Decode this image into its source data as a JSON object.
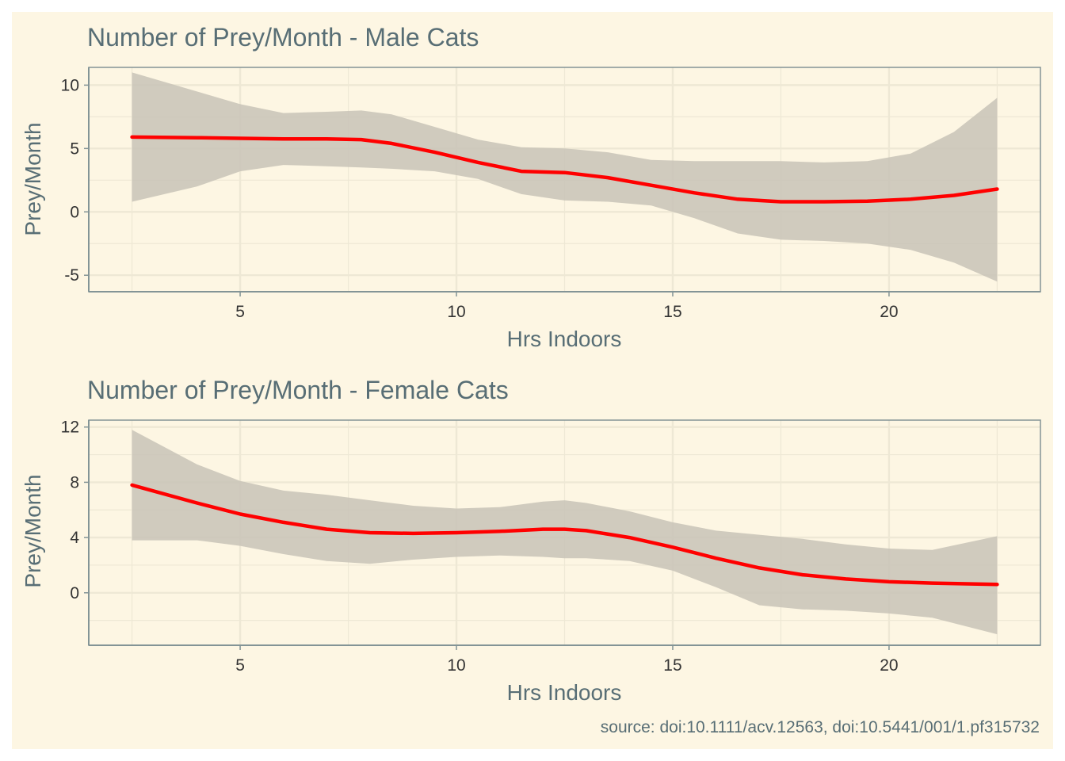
{
  "caption": "source: doi:10.1111/acv.12563, doi:10.5441/001/1.pf315732",
  "colors": {
    "background": "#fdf6e3",
    "grid": "#eee8d5",
    "axis": "#839496",
    "band": "#c8c3b7",
    "line": "#ff0000",
    "text": "#586e75"
  },
  "chart_data": [
    {
      "type": "line",
      "title": "Number of Prey/Month - Male Cats",
      "xlabel": "Hrs Indoors",
      "ylabel": "Prey/Month",
      "xlim": [
        1.5,
        23.5
      ],
      "ylim": [
        -6.3,
        11.4
      ],
      "x_ticks": [
        5,
        10,
        15,
        20
      ],
      "x_tick_labels": [
        "5",
        "10",
        "15",
        "20"
      ],
      "y_ticks": [
        -5,
        0,
        5,
        10
      ],
      "y_tick_labels": [
        "-5",
        "0",
        "5",
        "10"
      ],
      "grid": true,
      "series": [
        {
          "x": [
            2.5,
            4,
            5,
            6,
            7,
            7.8,
            8.5,
            9.5,
            10.5,
            11.5,
            12.5,
            13.5,
            14.5,
            15.5,
            16.5,
            17.5,
            18.5,
            19.5,
            20.5,
            21.5,
            22.5
          ],
          "y": [
            5.9,
            5.85,
            5.8,
            5.75,
            5.75,
            5.7,
            5.4,
            4.7,
            3.9,
            3.2,
            3.1,
            2.7,
            2.1,
            1.5,
            1.0,
            0.8,
            0.8,
            0.85,
            1.0,
            1.3,
            1.8
          ],
          "lower": [
            0.8,
            2.0,
            3.2,
            3.7,
            3.6,
            3.5,
            3.4,
            3.2,
            2.6,
            1.4,
            0.9,
            0.8,
            0.5,
            -0.5,
            -1.7,
            -2.2,
            -2.3,
            -2.5,
            -3.0,
            -4.0,
            -5.5
          ],
          "upper": [
            11.0,
            9.5,
            8.5,
            7.8,
            7.9,
            8.0,
            7.7,
            6.7,
            5.7,
            5.1,
            5.0,
            4.7,
            4.1,
            4.0,
            4.0,
            4.0,
            3.9,
            4.0,
            4.6,
            6.3,
            9.0
          ]
        }
      ]
    },
    {
      "type": "line",
      "title": "Number of Prey/Month - Female Cats",
      "xlabel": "Hrs Indoors",
      "ylabel": "Prey/Month",
      "xlim": [
        1.5,
        23.5
      ],
      "ylim": [
        -3.8,
        12.5
      ],
      "x_ticks": [
        5,
        10,
        15,
        20
      ],
      "x_tick_labels": [
        "5",
        "10",
        "15",
        "20"
      ],
      "y_ticks": [
        0,
        4,
        8,
        12
      ],
      "y_tick_labels": [
        "0",
        "4",
        "8",
        "12"
      ],
      "grid": true,
      "series": [
        {
          "x": [
            2.5,
            4,
            5,
            6,
            7,
            8,
            9,
            10,
            11,
            12,
            12.5,
            13,
            14,
            15,
            16,
            17,
            18,
            19,
            20,
            21,
            22.5
          ],
          "y": [
            7.8,
            6.5,
            5.7,
            5.1,
            4.6,
            4.35,
            4.3,
            4.35,
            4.45,
            4.6,
            4.6,
            4.5,
            4.0,
            3.3,
            2.5,
            1.8,
            1.3,
            1.0,
            0.8,
            0.7,
            0.6
          ],
          "lower": [
            3.8,
            3.8,
            3.4,
            2.8,
            2.3,
            2.1,
            2.4,
            2.6,
            2.7,
            2.6,
            2.5,
            2.5,
            2.3,
            1.6,
            0.4,
            -0.9,
            -1.2,
            -1.3,
            -1.5,
            -1.8,
            -3.0
          ],
          "upper": [
            11.8,
            9.3,
            8.1,
            7.4,
            7.1,
            6.7,
            6.3,
            6.1,
            6.2,
            6.6,
            6.7,
            6.5,
            5.9,
            5.1,
            4.5,
            4.2,
            3.9,
            3.5,
            3.2,
            3.1,
            4.1
          ]
        }
      ]
    }
  ]
}
